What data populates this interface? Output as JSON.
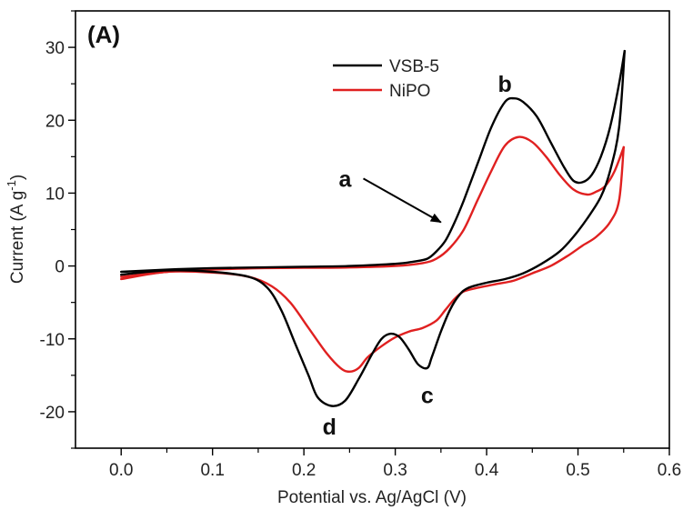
{
  "chart_data": {
    "type": "line",
    "panel_label": "(A)",
    "title": "",
    "xlabel": "Potential vs. Ag/AgCl (V)",
    "ylabel_main": "Current (A g",
    "ylabel_sup": "-1",
    "ylabel_close": ")",
    "xlim": [
      -0.05,
      0.6
    ],
    "ylim": [
      -25,
      35
    ],
    "xticks": [
      0.0,
      0.1,
      0.2,
      0.3,
      0.4,
      0.5,
      0.6
    ],
    "xtick_labels": [
      "0.0",
      "0.1",
      "0.2",
      "0.3",
      "0.4",
      "0.5",
      "0.6"
    ],
    "yticks": [
      -20,
      -10,
      0,
      10,
      20,
      30
    ],
    "ytick_labels": [
      "-20",
      "-10",
      "0",
      "10",
      "20",
      "30"
    ],
    "grid": false,
    "legend_position": "top-center",
    "series": [
      {
        "name": "VSB-5",
        "color": "#000000",
        "anodic": [
          [
            0.0,
            -0.8
          ],
          [
            0.05,
            -0.5
          ],
          [
            0.1,
            -0.3
          ],
          [
            0.15,
            -0.2
          ],
          [
            0.2,
            -0.1
          ],
          [
            0.25,
            0.0
          ],
          [
            0.3,
            0.3
          ],
          [
            0.32,
            0.6
          ],
          [
            0.335,
            1.0
          ],
          [
            0.345,
            2.0
          ],
          [
            0.355,
            3.5
          ],
          [
            0.365,
            6.0
          ],
          [
            0.375,
            9.0
          ],
          [
            0.39,
            14.0
          ],
          [
            0.405,
            19.0
          ],
          [
            0.42,
            22.5
          ],
          [
            0.43,
            23.0
          ],
          [
            0.44,
            22.5
          ],
          [
            0.455,
            20.5
          ],
          [
            0.47,
            17.0
          ],
          [
            0.485,
            13.5
          ],
          [
            0.495,
            11.7
          ],
          [
            0.505,
            11.5
          ],
          [
            0.515,
            12.5
          ],
          [
            0.525,
            15.0
          ],
          [
            0.535,
            19.0
          ],
          [
            0.545,
            25.0
          ],
          [
            0.551,
            29.5
          ]
        ],
        "cathodic": [
          [
            0.551,
            29.5
          ],
          [
            0.545,
            19.0
          ],
          [
            0.535,
            13.0
          ],
          [
            0.525,
            9.5
          ],
          [
            0.51,
            6.5
          ],
          [
            0.495,
            4.0
          ],
          [
            0.48,
            2.0
          ],
          [
            0.46,
            0.3
          ],
          [
            0.44,
            -1.0
          ],
          [
            0.42,
            -1.8
          ],
          [
            0.4,
            -2.3
          ],
          [
            0.38,
            -3.0
          ],
          [
            0.37,
            -4.0
          ],
          [
            0.36,
            -6.0
          ],
          [
            0.35,
            -9.0
          ],
          [
            0.34,
            -12.5
          ],
          [
            0.335,
            -14.0
          ],
          [
            0.325,
            -13.5
          ],
          [
            0.315,
            -11.5
          ],
          [
            0.305,
            -9.8
          ],
          [
            0.295,
            -9.3
          ],
          [
            0.285,
            -10.0
          ],
          [
            0.275,
            -12.0
          ],
          [
            0.26,
            -15.5
          ],
          [
            0.245,
            -18.5
          ],
          [
            0.23,
            -19.2
          ],
          [
            0.215,
            -18.0
          ],
          [
            0.205,
            -15.0
          ],
          [
            0.19,
            -10.5
          ],
          [
            0.175,
            -6.0
          ],
          [
            0.16,
            -3.0
          ],
          [
            0.14,
            -1.5
          ],
          [
            0.1,
            -0.8
          ],
          [
            0.05,
            -0.6
          ],
          [
            0.0,
            -1.2
          ]
        ]
      },
      {
        "name": "NiPO",
        "color": "#e02020",
        "anodic": [
          [
            0.0,
            -1.5
          ],
          [
            0.05,
            -0.8
          ],
          [
            0.1,
            -0.5
          ],
          [
            0.15,
            -0.3
          ],
          [
            0.2,
            -0.25
          ],
          [
            0.25,
            -0.2
          ],
          [
            0.3,
            0.0
          ],
          [
            0.33,
            0.4
          ],
          [
            0.345,
            1.0
          ],
          [
            0.36,
            2.5
          ],
          [
            0.375,
            5.0
          ],
          [
            0.39,
            9.0
          ],
          [
            0.405,
            13.0
          ],
          [
            0.42,
            16.5
          ],
          [
            0.435,
            17.7
          ],
          [
            0.45,
            17.0
          ],
          [
            0.465,
            15.0
          ],
          [
            0.48,
            12.5
          ],
          [
            0.495,
            10.5
          ],
          [
            0.51,
            9.8
          ],
          [
            0.52,
            10.2
          ],
          [
            0.53,
            11.0
          ],
          [
            0.54,
            13.0
          ],
          [
            0.55,
            16.3
          ]
        ],
        "cathodic": [
          [
            0.55,
            16.3
          ],
          [
            0.545,
            9.0
          ],
          [
            0.535,
            6.0
          ],
          [
            0.52,
            4.0
          ],
          [
            0.505,
            2.8
          ],
          [
            0.49,
            1.5
          ],
          [
            0.47,
            0.0
          ],
          [
            0.45,
            -1.0
          ],
          [
            0.43,
            -2.0
          ],
          [
            0.41,
            -2.5
          ],
          [
            0.39,
            -3.0
          ],
          [
            0.375,
            -3.5
          ],
          [
            0.365,
            -4.5
          ],
          [
            0.355,
            -6.0
          ],
          [
            0.345,
            -7.5
          ],
          [
            0.33,
            -8.5
          ],
          [
            0.315,
            -9.0
          ],
          [
            0.3,
            -9.8
          ],
          [
            0.285,
            -11.0
          ],
          [
            0.27,
            -12.5
          ],
          [
            0.26,
            -14.0
          ],
          [
            0.25,
            -14.5
          ],
          [
            0.24,
            -14.0
          ],
          [
            0.225,
            -12.0
          ],
          [
            0.205,
            -8.5
          ],
          [
            0.185,
            -5.0
          ],
          [
            0.165,
            -2.8
          ],
          [
            0.14,
            -1.5
          ],
          [
            0.1,
            -0.9
          ],
          [
            0.05,
            -0.8
          ],
          [
            0.0,
            -1.8
          ]
        ]
      }
    ],
    "annotations": [
      {
        "label": "a",
        "x": 0.245,
        "y": 12.0,
        "arrow_from": [
          0.265,
          12.0
        ],
        "arrow_to": [
          0.35,
          6.0
        ]
      },
      {
        "label": "b",
        "x": 0.42,
        "y": 25.0
      },
      {
        "label": "c",
        "x": 0.335,
        "y": -17.7
      },
      {
        "label": "d",
        "x": 0.228,
        "y": -22.0
      }
    ]
  }
}
